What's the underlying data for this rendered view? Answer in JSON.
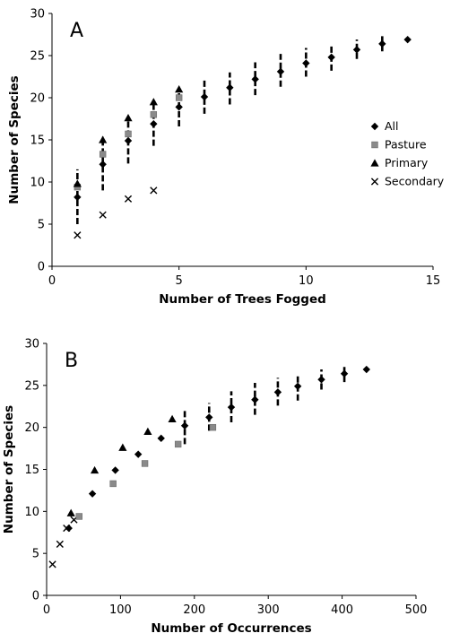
{
  "chart_data": [
    {
      "panel_label": "A",
      "type": "scatter",
      "xlabel": "Number of Trees Fogged",
      "ylabel": "Number of Species",
      "xlim": [
        0,
        15
      ],
      "ylim": [
        0,
        30
      ],
      "xticks": [
        "0",
        "5",
        "10",
        "15"
      ],
      "yticks": [
        "0",
        "5",
        "10",
        "15",
        "20",
        "25",
        "30"
      ],
      "legend": {
        "placement": "right",
        "entries": [
          "All",
          "Pasture",
          "Primary",
          "Secondary"
        ]
      },
      "series": [
        {
          "name": "All",
          "marker": "diamond",
          "points": [
            [
              1,
              8.2
            ],
            [
              2,
              12.1
            ],
            [
              3,
              14.9
            ],
            [
              4,
              16.9
            ],
            [
              5,
              18.9
            ],
            [
              6,
              20.1
            ],
            [
              7,
              21.2
            ],
            [
              8,
              22.2
            ],
            [
              9,
              23.1
            ],
            [
              10,
              24.1
            ],
            [
              11,
              24.8
            ],
            [
              12,
              25.7
            ],
            [
              13,
              26.4
            ],
            [
              14,
              26.9
            ]
          ],
          "error_bars": [
            [
              1,
              5,
              11.5
            ],
            [
              2,
              9,
              15.4
            ],
            [
              3,
              12.2,
              17.7
            ],
            [
              4,
              14.3,
              19.5
            ],
            [
              5,
              16.6,
              20.8
            ],
            [
              6,
              18.1,
              22.2
            ],
            [
              7,
              19.2,
              23
            ],
            [
              8,
              20.3,
              24.2
            ],
            [
              9,
              21.3,
              25.2
            ],
            [
              10,
              22.5,
              25.9
            ],
            [
              11,
              23.2,
              26.4
            ],
            [
              12,
              24.6,
              26.9
            ],
            [
              13,
              25.5,
              27.3
            ]
          ]
        },
        {
          "name": "Pasture",
          "marker": "square",
          "points": [
            [
              1,
              9.4
            ],
            [
              2,
              13.3
            ],
            [
              3,
              15.7
            ],
            [
              4,
              18
            ],
            [
              5,
              20
            ]
          ]
        },
        {
          "name": "Primary",
          "marker": "triangle",
          "points": [
            [
              1,
              9.8
            ],
            [
              2,
              15
            ],
            [
              3,
              17.6
            ],
            [
              4,
              19.5
            ],
            [
              5,
              21
            ]
          ]
        },
        {
          "name": "Secondary",
          "marker": "x",
          "points": [
            [
              1,
              3.7
            ],
            [
              2,
              6.1
            ],
            [
              3,
              8
            ],
            [
              4,
              9
            ]
          ]
        }
      ]
    },
    {
      "panel_label": "B",
      "type": "scatter",
      "xlabel": "Number of Occurrences",
      "ylabel": "Number of Species",
      "xlim": [
        0,
        500
      ],
      "ylim": [
        0,
        30
      ],
      "xticks": [
        "0",
        "100",
        "200",
        "300",
        "400",
        "500"
      ],
      "yticks": [
        "0",
        "5",
        "10",
        "15",
        "20",
        "25",
        "30"
      ],
      "series": [
        {
          "name": "All",
          "marker": "diamond",
          "points": [
            [
              30,
              8
            ],
            [
              62,
              12.1
            ],
            [
              93,
              14.9
            ],
            [
              124,
              16.8
            ],
            [
              155,
              18.7
            ],
            [
              187,
              20.2
            ],
            [
              220,
              21.2
            ],
            [
              250,
              22.4
            ],
            [
              282,
              23.3
            ],
            [
              313,
              24.2
            ],
            [
              340,
              24.9
            ],
            [
              372,
              25.7
            ],
            [
              403,
              26.4
            ],
            [
              433,
              26.9
            ]
          ],
          "error_bars": [
            [
              187,
              18,
              22.2
            ],
            [
              220,
              19.6,
              22.9
            ],
            [
              250,
              20.6,
              24.3
            ],
            [
              282,
              21.5,
              25.3
            ],
            [
              313,
              22.6,
              25.9
            ],
            [
              340,
              23.2,
              26.4
            ],
            [
              372,
              24.5,
              26.9
            ],
            [
              403,
              25.4,
              27.2
            ]
          ]
        },
        {
          "name": "Pasture",
          "marker": "square",
          "points": [
            [
              44,
              9.4
            ],
            [
              90,
              13.3
            ],
            [
              133,
              15.7
            ],
            [
              178,
              18
            ],
            [
              225,
              20
            ]
          ]
        },
        {
          "name": "Primary",
          "marker": "triangle",
          "points": [
            [
              33,
              9.8
            ],
            [
              65,
              14.9
            ],
            [
              103,
              17.6
            ],
            [
              137,
              19.5
            ],
            [
              170,
              21
            ]
          ]
        },
        {
          "name": "Secondary",
          "marker": "x",
          "points": [
            [
              8,
              3.7
            ],
            [
              18,
              6.1
            ],
            [
              27,
              8
            ],
            [
              37,
              9
            ]
          ]
        }
      ]
    }
  ]
}
